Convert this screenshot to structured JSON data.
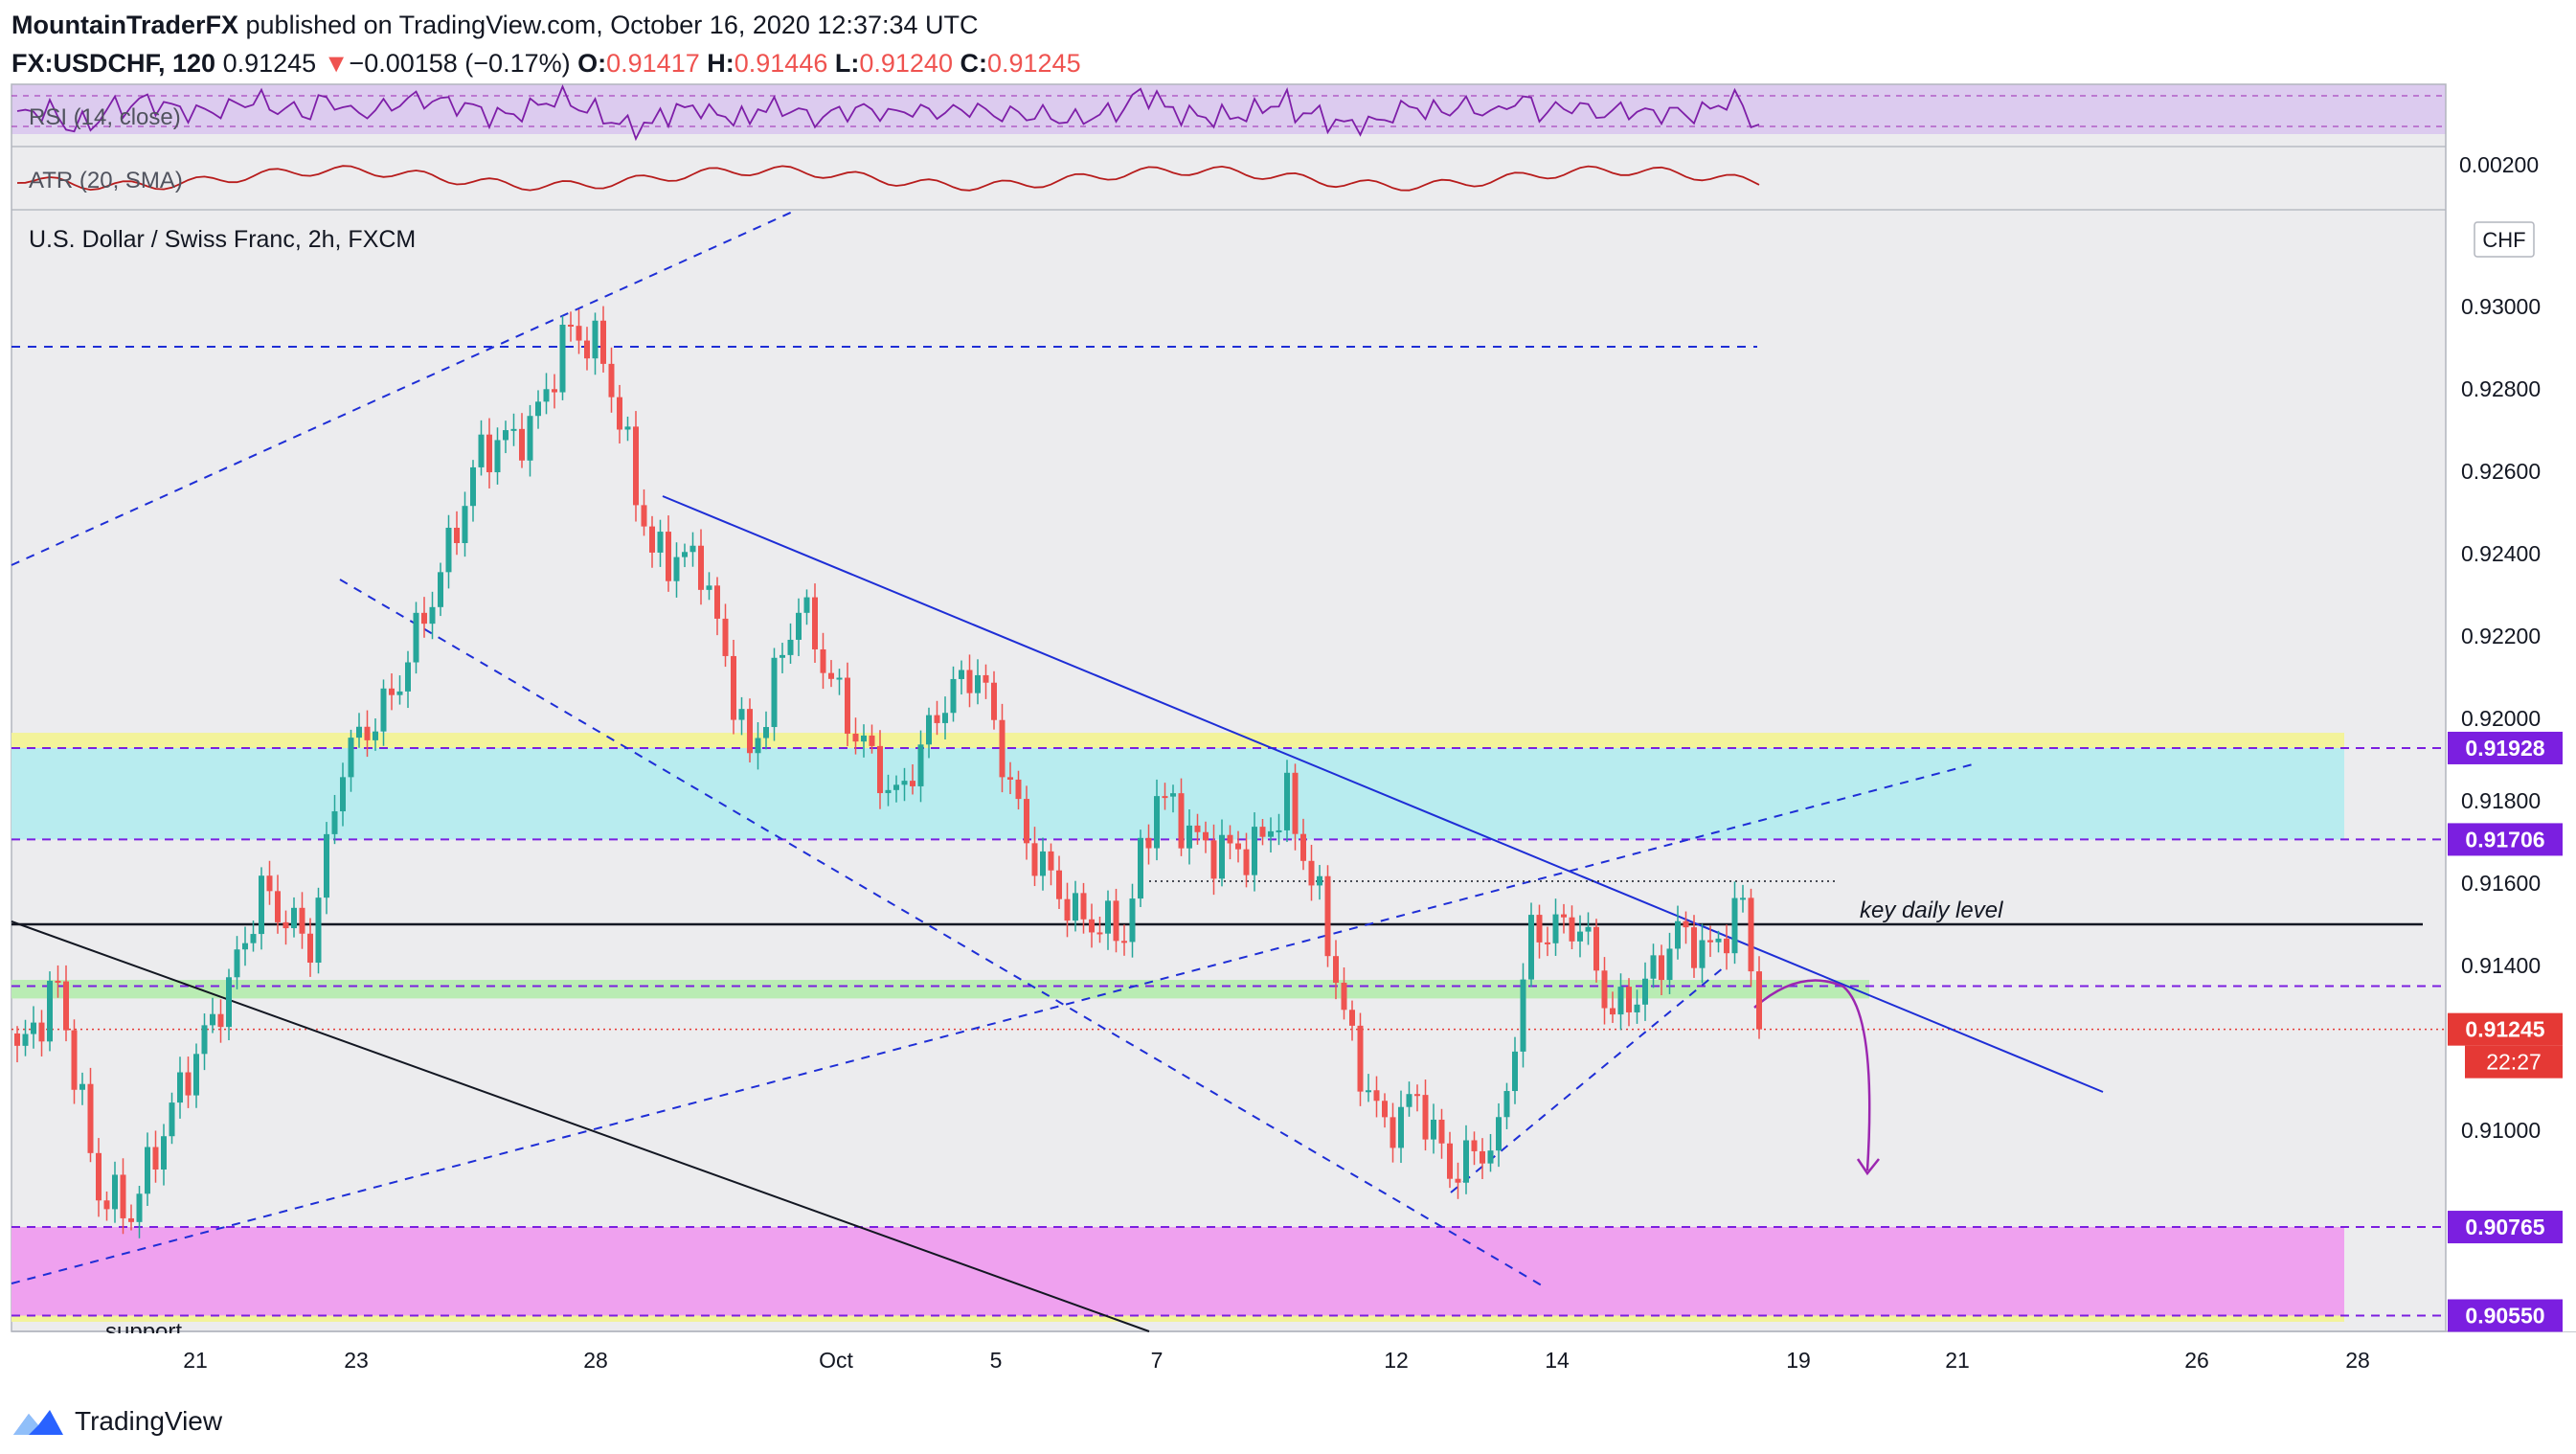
{
  "header": {
    "author": "MountainTraderFX",
    "published": " published on TradingView.com, October 16, 2020 12:37:34 UTC",
    "symbol": "FX:USDCHF, 120",
    "last": "0.91245",
    "change_arrow": "▼",
    "change": "−0.00158 (−0.17%)",
    "o_label": "O:",
    "o": "0.91417",
    "h_label": "H:",
    "h": "0.91446",
    "l_label": "L:",
    "l": "0.91240",
    "c_label": "C:",
    "c": "0.91245"
  },
  "indicators": {
    "rsi_label": "RSI (14, close)",
    "atr_label": "ATR (20, SMA)",
    "atr_tick": "0.00200"
  },
  "footer": {
    "brand": "TradingView",
    "logo_icon": "tradingview-logo-icon"
  },
  "chart_data": {
    "type": "candlestick",
    "title": "U.S. Dollar / Swiss Franc, 2h, FXCM",
    "currency": "CHF",
    "ylim": [
      0.9055,
      0.931
    ],
    "y_ticks": [
      "0.93000",
      "0.92800",
      "0.92600",
      "0.92400",
      "0.92200",
      "0.92000",
      "0.91800",
      "0.91600",
      "0.91400",
      "0.91000"
    ],
    "x_ticks": [
      "21",
      "23",
      "28",
      "Oct",
      "5",
      "7",
      "12",
      "14",
      "19",
      "21",
      "26",
      "28"
    ],
    "price_labels": [
      {
        "value": "0.91928",
        "color": "#7b1fe0"
      },
      {
        "value": "0.91706",
        "color": "#7b1fe0"
      },
      {
        "value": "0.91245",
        "color": "#e53935"
      },
      {
        "value": "0.90765",
        "color": "#7b1fe0"
      },
      {
        "value": "0.90550",
        "color": "#7b1fe0"
      }
    ],
    "countdown": "22:27",
    "annotations": {
      "key_level": "key daily level",
      "support": "support"
    },
    "zones": [
      {
        "from": 0.91928,
        "to": 0.91965,
        "color": "#f3f39a"
      },
      {
        "from": 0.91706,
        "to": 0.91928,
        "color": "#b8ecef"
      },
      {
        "from": 0.9132,
        "to": 0.91365,
        "color": "#b9ecb3"
      },
      {
        "from": 0.9055,
        "to": 0.90765,
        "color": "#efa1ef"
      },
      {
        "from": 0.90535,
        "to": 0.9055,
        "color": "#f3f39a"
      }
    ],
    "levels": [
      {
        "value": 0.91928,
        "color": "#7b1fe0",
        "style": "dashed"
      },
      {
        "value": 0.91706,
        "color": "#7b1fe0",
        "style": "dashed"
      },
      {
        "value": 0.90765,
        "color": "#7b1fe0",
        "style": "dashed"
      },
      {
        "value": 0.9055,
        "color": "#7b1fe0",
        "style": "dashed"
      },
      {
        "value": 0.9135,
        "color": "#7b1fe0",
        "style": "dashed"
      },
      {
        "value": 0.915,
        "color": "#131722",
        "style": "solid"
      },
      {
        "value": 0.91245,
        "color": "#e53935",
        "style": "dotted"
      }
    ],
    "colors": {
      "up": "#26a69a",
      "down": "#ef5350",
      "blue": "#1e2ed6",
      "purple": "#9c27b0"
    },
    "keypoints": [
      {
        "i": 0,
        "p": 0.9118
      },
      {
        "i": 5,
        "p": 0.9135
      },
      {
        "i": 10,
        "p": 0.9085
      },
      {
        "i": 14,
        "p": 0.908
      },
      {
        "i": 20,
        "p": 0.911
      },
      {
        "i": 26,
        "p": 0.9135
      },
      {
        "i": 30,
        "p": 0.9158
      },
      {
        "i": 36,
        "p": 0.9145
      },
      {
        "i": 40,
        "p": 0.919
      },
      {
        "i": 46,
        "p": 0.9205
      },
      {
        "i": 52,
        "p": 0.9235
      },
      {
        "i": 57,
        "p": 0.9265
      },
      {
        "i": 63,
        "p": 0.927
      },
      {
        "i": 68,
        "p": 0.9295
      },
      {
        "i": 72,
        "p": 0.9288
      },
      {
        "i": 78,
        "p": 0.924
      },
      {
        "i": 84,
        "p": 0.9238
      },
      {
        "i": 90,
        "p": 0.919
      },
      {
        "i": 96,
        "p": 0.9228
      },
      {
        "i": 102,
        "p": 0.92
      },
      {
        "i": 108,
        "p": 0.918
      },
      {
        "i": 114,
        "p": 0.9205
      },
      {
        "i": 118,
        "p": 0.9212
      },
      {
        "i": 124,
        "p": 0.917
      },
      {
        "i": 130,
        "p": 0.9152
      },
      {
        "i": 136,
        "p": 0.9148
      },
      {
        "i": 140,
        "p": 0.9182
      },
      {
        "i": 146,
        "p": 0.9168
      },
      {
        "i": 152,
        "p": 0.9168
      },
      {
        "i": 156,
        "p": 0.918
      },
      {
        "i": 160,
        "p": 0.9155
      },
      {
        "i": 164,
        "p": 0.912
      },
      {
        "i": 168,
        "p": 0.91
      },
      {
        "i": 172,
        "p": 0.9108
      },
      {
        "i": 176,
        "p": 0.909
      },
      {
        "i": 182,
        "p": 0.9098
      },
      {
        "i": 186,
        "p": 0.9148
      },
      {
        "i": 192,
        "p": 0.915
      },
      {
        "i": 196,
        "p": 0.9128
      },
      {
        "i": 200,
        "p": 0.9135
      },
      {
        "i": 204,
        "p": 0.9148
      },
      {
        "i": 208,
        "p": 0.9143
      },
      {
        "i": 212,
        "p": 0.9155
      },
      {
        "i": 214,
        "p": 0.91245
      }
    ]
  }
}
